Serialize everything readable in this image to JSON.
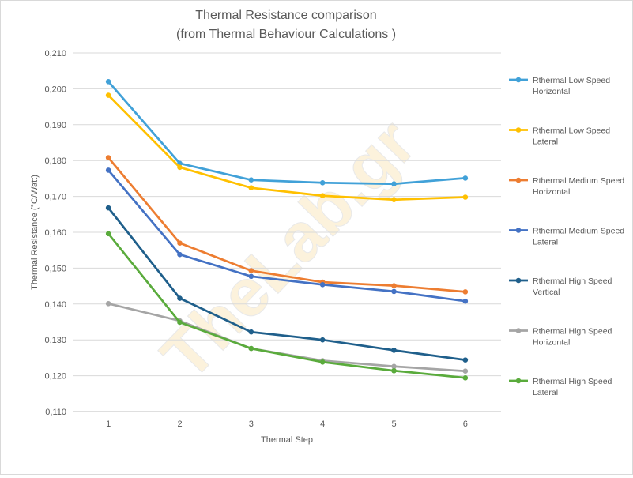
{
  "chart_data": {
    "type": "line",
    "title": "Thermal Resistance comparison",
    "subtitle": "(from Thermal Behaviour Calculations )",
    "xlabel": "Thermal Step",
    "ylabel": "Thermal Resistance (°C/Watt)",
    "categories": [
      "1",
      "2",
      "3",
      "4",
      "5",
      "6"
    ],
    "yticks": [
      "0,110",
      "0,120",
      "0,130",
      "0,140",
      "0,150",
      "0,160",
      "0,170",
      "0,180",
      "0,190",
      "0,200",
      "0,210"
    ],
    "ylim": [
      0.11,
      0.21
    ],
    "grid": true,
    "legend_position": "right",
    "watermark": "TheLab.gr",
    "series": [
      {
        "name_line1": "Rthermal Low Speed",
        "name_line2": "Horizontal",
        "color": "#41a1d8",
        "values": [
          0.202,
          0.1792,
          0.1746,
          0.1738,
          0.1735,
          0.1751
        ]
      },
      {
        "name_line1": "Rthermal Low Speed",
        "name_line2": "Lateral",
        "color": "#ffc000",
        "values": [
          0.1982,
          0.1781,
          0.1724,
          0.1702,
          0.1691,
          0.1698
        ]
      },
      {
        "name_line1": "Rthermal Medium Speed",
        "name_line2": "Horizontal",
        "color": "#ed7d31",
        "values": [
          0.1808,
          0.157,
          0.1493,
          0.1461,
          0.1451,
          0.1434
        ]
      },
      {
        "name_line1": "Rthermal Medium Speed",
        "name_line2": "Lateral",
        "color": "#4472c4",
        "values": [
          0.1773,
          0.1538,
          0.1477,
          0.1454,
          0.1435,
          0.1408
        ]
      },
      {
        "name_line1": "Rthermal High Speed",
        "name_line2": "Vertical",
        "color": "#1f5f8b",
        "values": [
          0.1668,
          0.1416,
          0.1322,
          0.13,
          0.1271,
          0.1244
        ]
      },
      {
        "name_line1": "Rthermal High Speed",
        "name_line2": "Horizontal",
        "color": "#a5a5a5",
        "values": [
          0.1401,
          0.1353,
          0.1276,
          0.1242,
          0.1226,
          0.1213
        ]
      },
      {
        "name_line1": "Rthermal High Speed",
        "name_line2": "Lateral",
        "color": "#5aab3c",
        "values": [
          0.1596,
          0.1349,
          0.1276,
          0.1238,
          0.1214,
          0.1194
        ]
      }
    ]
  }
}
